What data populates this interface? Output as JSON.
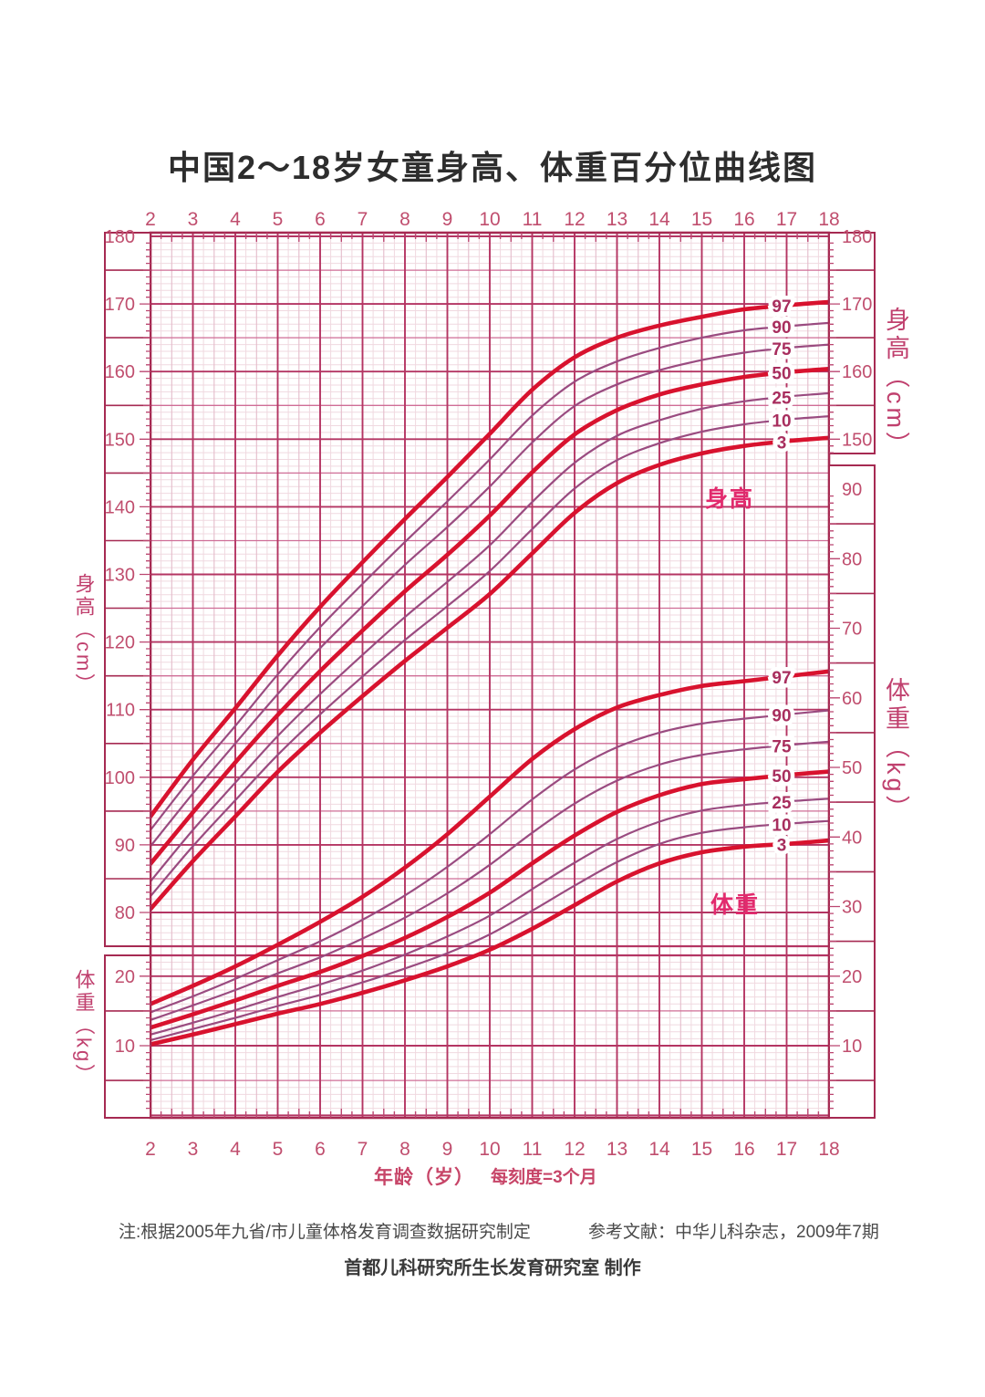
{
  "title": "中国2～18岁女童身高、体重百分位曲线图",
  "in_plot_labels": {
    "height": "身高",
    "weight": "体重"
  },
  "axis_titles": {
    "height_left": "身高（cm）",
    "weight_left": "体重（kg）",
    "height_right": "身高（cm）",
    "weight_right": "体重（kg）"
  },
  "age_axis": {
    "label": "年龄（岁）",
    "sublabel": "每刻度=3个月",
    "ticks": [
      2,
      3,
      4,
      5,
      6,
      7,
      8,
      9,
      10,
      11,
      12,
      13,
      14,
      15,
      16,
      17,
      18
    ],
    "minor_per_year": 4
  },
  "rulers": {
    "height_left_labels": [
      180,
      170,
      160,
      150,
      140,
      130,
      120,
      110,
      100,
      90,
      80
    ],
    "weight_left_labels": [
      20,
      10
    ],
    "height_right_labels": [
      180,
      170,
      160,
      150
    ],
    "weight_right_labels": [
      90,
      80,
      70,
      60,
      50,
      40,
      30,
      20,
      10
    ]
  },
  "footer": {
    "note": "注:根据2005年九省/市儿童体格发育调查数据研究制定",
    "reference": "参考文献：中华儿科杂志，2009年7期",
    "credit": "首都儿科研究所生长发育研究室 制作"
  },
  "colors": {
    "thick_curve": "#d8122e",
    "thin_curve": "#9a4b80",
    "grid_minor": "#f0d9e0",
    "grid_mid": "#cf6d96",
    "grid_major": "#b43563",
    "frame": "#a62a52",
    "tick": "#bb4670",
    "number": "#c04e6e",
    "curve_label": "#a82e5e",
    "in_plot_label": "#e22a6d",
    "title": "#2d2d2d"
  },
  "chart_data": {
    "type": "line",
    "title": "中国2～18岁女童身高、体重百分位曲线图",
    "xlabel": "年龄（岁） 每刻度=3个月",
    "x": [
      2,
      3,
      4,
      5,
      6,
      7,
      8,
      9,
      10,
      11,
      12,
      13,
      14,
      15,
      16,
      17,
      18
    ],
    "x_range": [
      2,
      18
    ],
    "height_axis": {
      "unit": "cm",
      "range": [
        80,
        180
      ],
      "major_step": 10,
      "mid_step": 5,
      "minor_step": 1
    },
    "weight_axis": {
      "unit": "kg",
      "range": [
        10,
        90
      ],
      "major_step": 10,
      "mid_step": 5,
      "minor_step": 1
    },
    "percentiles": [
      "97",
      "90",
      "75",
      "50",
      "25",
      "10",
      "3"
    ],
    "grid": "on",
    "height_series": [
      {
        "name": "97",
        "thick": true,
        "values": [
          94.2,
          102.6,
          110.2,
          118.0,
          125.2,
          131.8,
          138.2,
          144.4,
          150.8,
          157.3,
          162.1,
          165.0,
          166.8,
          168.1,
          169.2,
          169.8,
          170.3
        ]
      },
      {
        "name": "90",
        "thick": false,
        "values": [
          92.2,
          100.2,
          107.6,
          115.2,
          122.2,
          128.6,
          134.8,
          140.8,
          147.0,
          153.5,
          158.5,
          161.5,
          163.5,
          165.0,
          166.1,
          166.7,
          167.2
        ]
      },
      {
        "name": "75",
        "thick": false,
        "values": [
          89.8,
          97.6,
          105.0,
          112.3,
          119.1,
          125.3,
          131.4,
          137.0,
          143.0,
          149.5,
          154.9,
          158.1,
          160.2,
          161.7,
          162.8,
          163.5,
          164.0
        ]
      },
      {
        "name": "50",
        "thick": true,
        "values": [
          87.2,
          94.8,
          102.2,
          109.2,
          115.7,
          121.7,
          127.5,
          132.9,
          138.7,
          145.1,
          150.7,
          154.3,
          156.6,
          158.1,
          159.2,
          159.9,
          160.4
        ]
      },
      {
        "name": "25",
        "thick": false,
        "values": [
          84.6,
          92.2,
          99.2,
          106.1,
          112.3,
          118.1,
          123.7,
          128.9,
          134.3,
          140.7,
          146.5,
          150.5,
          152.8,
          154.5,
          155.6,
          156.3,
          156.8
        ]
      },
      {
        "name": "10",
        "thick": false,
        "values": [
          82.4,
          89.8,
          96.6,
          103.3,
          109.3,
          114.9,
          120.3,
          125.3,
          130.5,
          136.7,
          142.7,
          146.9,
          149.4,
          151.1,
          152.2,
          152.9,
          153.4
        ]
      },
      {
        "name": "3",
        "thick": true,
        "values": [
          80.5,
          87.6,
          94.2,
          100.8,
          106.6,
          112.0,
          117.2,
          122.1,
          127.1,
          133.1,
          139.1,
          143.5,
          146.2,
          147.9,
          149.0,
          149.7,
          150.2
        ]
      }
    ],
    "weight_series": [
      {
        "name": "97",
        "thick": true,
        "values": [
          16.0,
          18.6,
          21.4,
          24.5,
          27.8,
          31.4,
          35.6,
          40.4,
          45.8,
          51.2,
          55.5,
          58.6,
          60.4,
          61.7,
          62.4,
          63.1,
          63.8
        ]
      },
      {
        "name": "90",
        "thick": false,
        "values": [
          14.8,
          17.1,
          19.6,
          22.3,
          25.0,
          28.1,
          31.6,
          35.7,
          40.4,
          45.4,
          49.7,
          52.9,
          55.0,
          56.3,
          57.0,
          57.6,
          58.2
        ]
      },
      {
        "name": "75",
        "thick": false,
        "values": [
          13.7,
          15.8,
          18.0,
          20.4,
          22.7,
          25.4,
          28.4,
          31.9,
          36.0,
          40.6,
          44.8,
          48.1,
          50.4,
          51.8,
          52.6,
          53.2,
          53.7
        ]
      },
      {
        "name": "50",
        "thick": true,
        "values": [
          12.6,
          14.5,
          16.5,
          18.6,
          20.6,
          22.9,
          25.5,
          28.5,
          32.0,
          36.2,
          40.2,
          43.6,
          46.0,
          47.6,
          48.3,
          48.9,
          49.4
        ]
      },
      {
        "name": "25",
        "thick": false,
        "values": [
          11.6,
          13.3,
          15.1,
          17.0,
          18.8,
          20.8,
          23.1,
          25.7,
          28.7,
          32.5,
          36.3,
          39.7,
          42.2,
          43.8,
          44.6,
          45.1,
          45.5
        ]
      },
      {
        "name": "10",
        "thick": false,
        "values": [
          10.8,
          12.4,
          14.0,
          15.7,
          17.3,
          19.1,
          21.1,
          23.3,
          26.0,
          29.4,
          33.0,
          36.4,
          39.0,
          40.6,
          41.4,
          41.9,
          42.3
        ]
      },
      {
        "name": "3",
        "thick": true,
        "values": [
          10.2,
          11.6,
          13.1,
          14.6,
          16.0,
          17.6,
          19.4,
          21.4,
          23.8,
          26.8,
          30.2,
          33.6,
          36.2,
          37.8,
          38.6,
          39.0,
          39.5
        ]
      }
    ]
  }
}
